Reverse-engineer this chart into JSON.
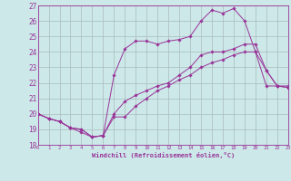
{
  "xlabel": "Windchill (Refroidissement éolien,°C)",
  "xlim": [
    0,
    23
  ],
  "ylim": [
    18,
    27
  ],
  "yticks": [
    18,
    19,
    20,
    21,
    22,
    23,
    24,
    25,
    26,
    27
  ],
  "xticks": [
    0,
    1,
    2,
    3,
    4,
    5,
    6,
    7,
    8,
    9,
    10,
    11,
    12,
    13,
    14,
    15,
    16,
    17,
    18,
    19,
    20,
    21,
    22,
    23
  ],
  "bg_color": "#cce8e8",
  "line_color": "#993399",
  "grid_color": "#aabbbb",
  "lines": [
    {
      "x": [
        0,
        1,
        2,
        3,
        4,
        5,
        6,
        7,
        8,
        9,
        10,
        11,
        12,
        13,
        14,
        15,
        16,
        17,
        18,
        19,
        20,
        21,
        22,
        23
      ],
      "y": [
        20.0,
        19.7,
        19.5,
        19.1,
        18.8,
        18.5,
        18.6,
        19.8,
        19.8,
        20.5,
        21.0,
        21.5,
        21.8,
        22.2,
        22.5,
        23.0,
        23.3,
        23.5,
        23.8,
        24.0,
        24.0,
        21.8,
        21.8,
        21.8
      ]
    },
    {
      "x": [
        0,
        1,
        2,
        3,
        4,
        5,
        6,
        7,
        8,
        9,
        10,
        11,
        12,
        13,
        14,
        15,
        16,
        17,
        18,
        19,
        20,
        21,
        22,
        23
      ],
      "y": [
        20.0,
        19.7,
        19.5,
        19.1,
        19.0,
        18.5,
        18.6,
        22.5,
        24.2,
        24.7,
        24.7,
        24.5,
        24.7,
        24.8,
        25.0,
        26.0,
        26.7,
        26.5,
        26.8,
        26.0,
        24.0,
        22.8,
        21.8,
        21.7
      ]
    },
    {
      "x": [
        0,
        1,
        2,
        3,
        4,
        5,
        6,
        7,
        8,
        9,
        10,
        11,
        12,
        13,
        14,
        15,
        16,
        17,
        18,
        19,
        20,
        21,
        22,
        23
      ],
      "y": [
        20.0,
        19.7,
        19.5,
        19.1,
        19.0,
        18.5,
        18.6,
        20.0,
        20.8,
        21.2,
        21.5,
        21.8,
        22.0,
        22.5,
        23.0,
        23.8,
        24.0,
        24.0,
        24.2,
        24.5,
        24.5,
        22.8,
        21.8,
        21.7
      ]
    }
  ]
}
